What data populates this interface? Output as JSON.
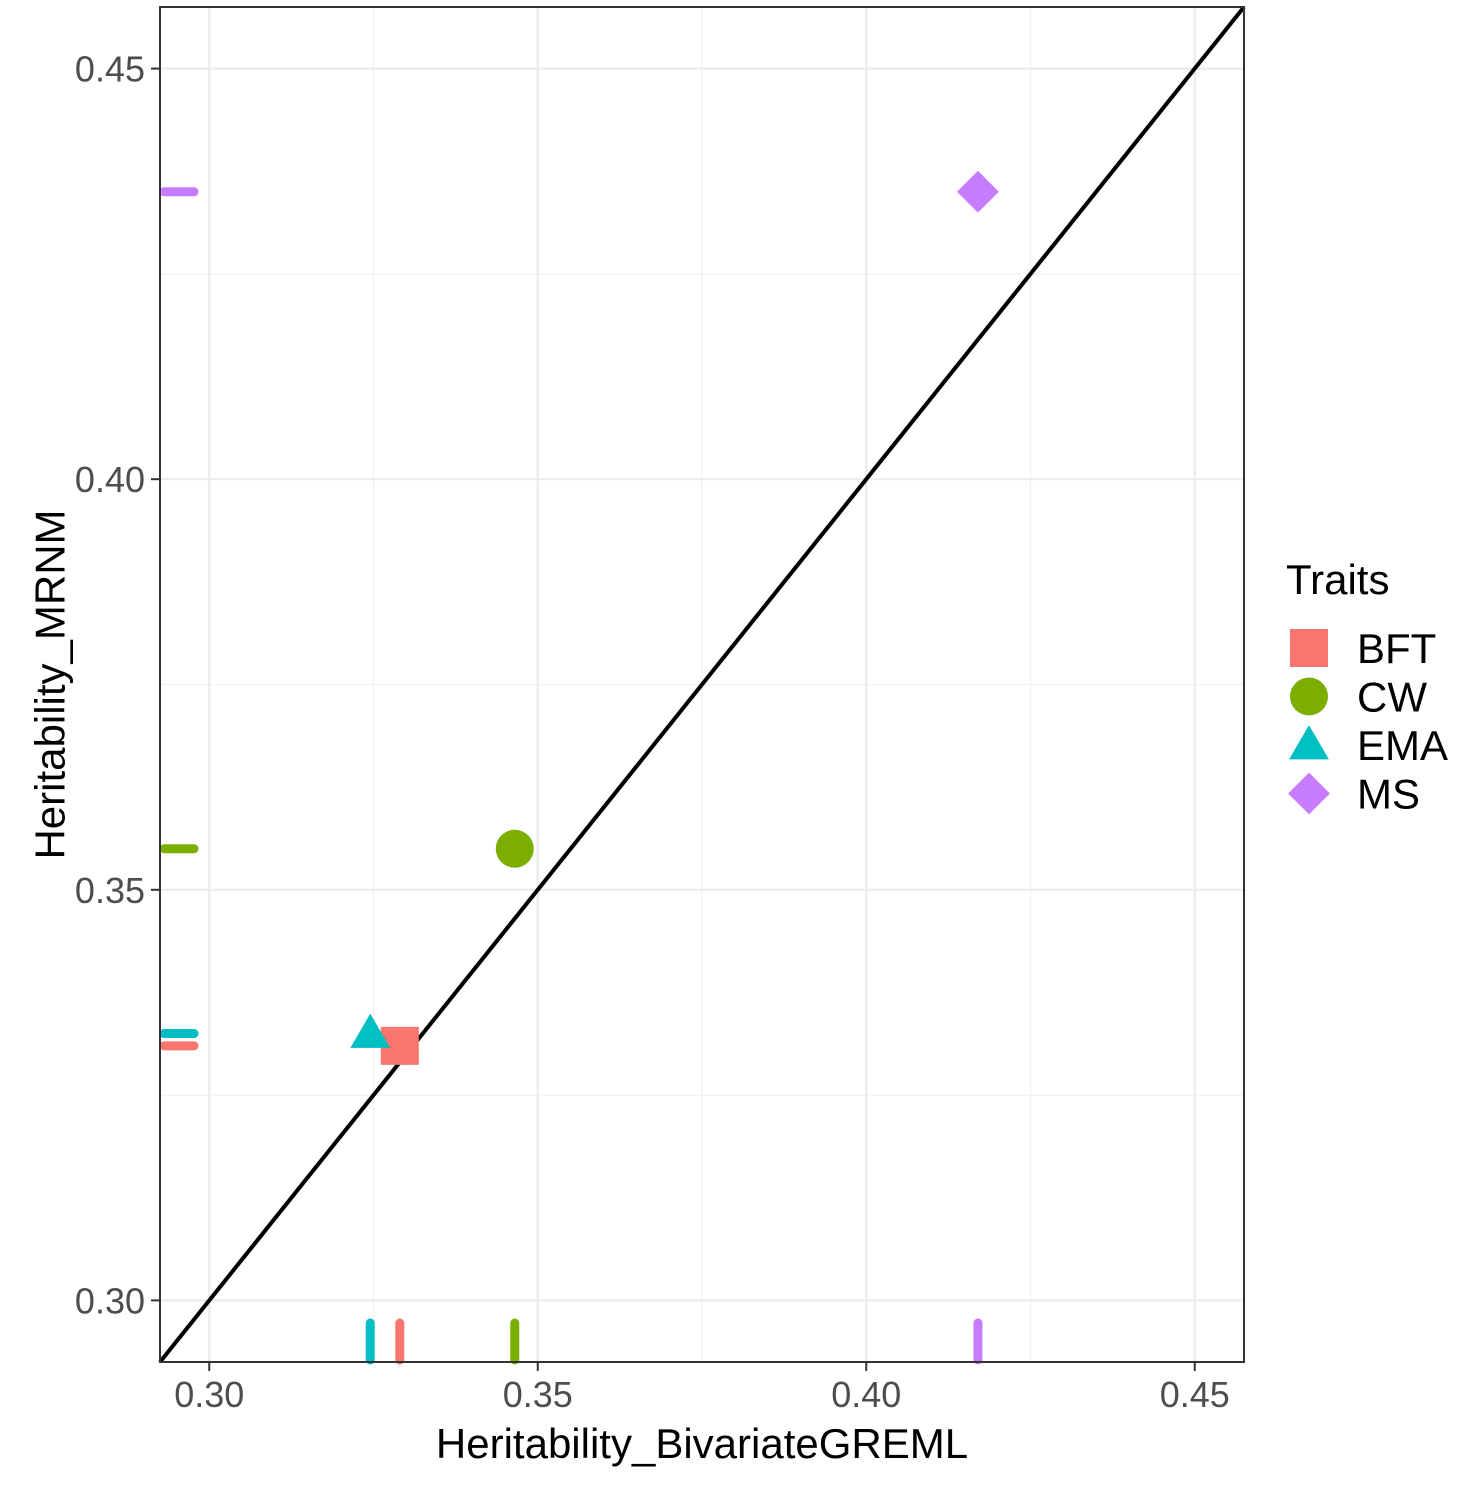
{
  "chart_data": {
    "type": "scatter",
    "title": "",
    "xlabel": "Heritability_BivariateGREML",
    "ylabel": "Heritability_MRNM",
    "xlim": [
      0.2925,
      0.4575
    ],
    "ylim": [
      0.2925,
      0.4575
    ],
    "x_ticks": [
      0.3,
      0.35,
      0.4,
      0.45
    ],
    "y_ticks": [
      0.3,
      0.35,
      0.4,
      0.45
    ],
    "x_tick_labels": [
      "0.30",
      "0.35",
      "0.40",
      "0.45"
    ],
    "y_tick_labels": [
      "0.30",
      "0.35",
      "0.40",
      "0.45"
    ],
    "grid": true,
    "reference_line": "y = x",
    "rug": true,
    "legend": {
      "title": "Traits",
      "position": "right"
    },
    "series": [
      {
        "name": "BFT",
        "shape": "square",
        "color": "#F8766D",
        "x": 0.329,
        "y": 0.331
      },
      {
        "name": "CW",
        "shape": "circle",
        "color": "#7CAE00",
        "x": 0.3465,
        "y": 0.355
      },
      {
        "name": "EMA",
        "shape": "triangle",
        "color": "#00BFC4",
        "x": 0.3245,
        "y": 0.3325
      },
      {
        "name": "MS",
        "shape": "diamond",
        "color": "#C77CFF",
        "x": 0.417,
        "y": 0.435
      }
    ]
  }
}
